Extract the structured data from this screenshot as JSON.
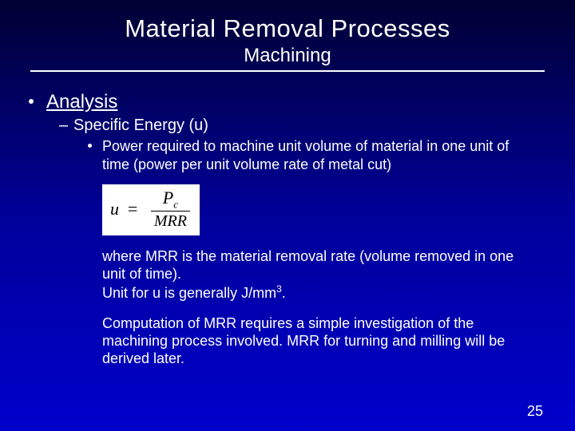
{
  "title": "Material Removal Processes",
  "subtitle": "Machining",
  "section": "Analysis",
  "subsection": "Specific Energy (u)",
  "definition": "Power required to machine unit volume of material in one unit of time (power per unit volume rate of metal cut)",
  "formula": {
    "lhs": "u",
    "eq": "=",
    "num_main": "P",
    "num_sub": "c",
    "den": "MRR"
  },
  "explain1a": "where MRR is the material removal rate (volume removed in one unit of time).",
  "explain1b_prefix": "Unit for u is generally J/mm",
  "explain1b_exp": "3",
  "explain1b_suffix": ".",
  "explain2": "Computation of MRR requires a simple investigation of the machining process involved. MRR for turning and milling will be derived later.",
  "page_number": "25",
  "colors": {
    "bg_top": "#000033",
    "bg_mid": "#000099",
    "bg_bot": "#0000cc",
    "text": "#ffffff",
    "formula_bg": "#ffffff",
    "formula_text": "#000000"
  }
}
